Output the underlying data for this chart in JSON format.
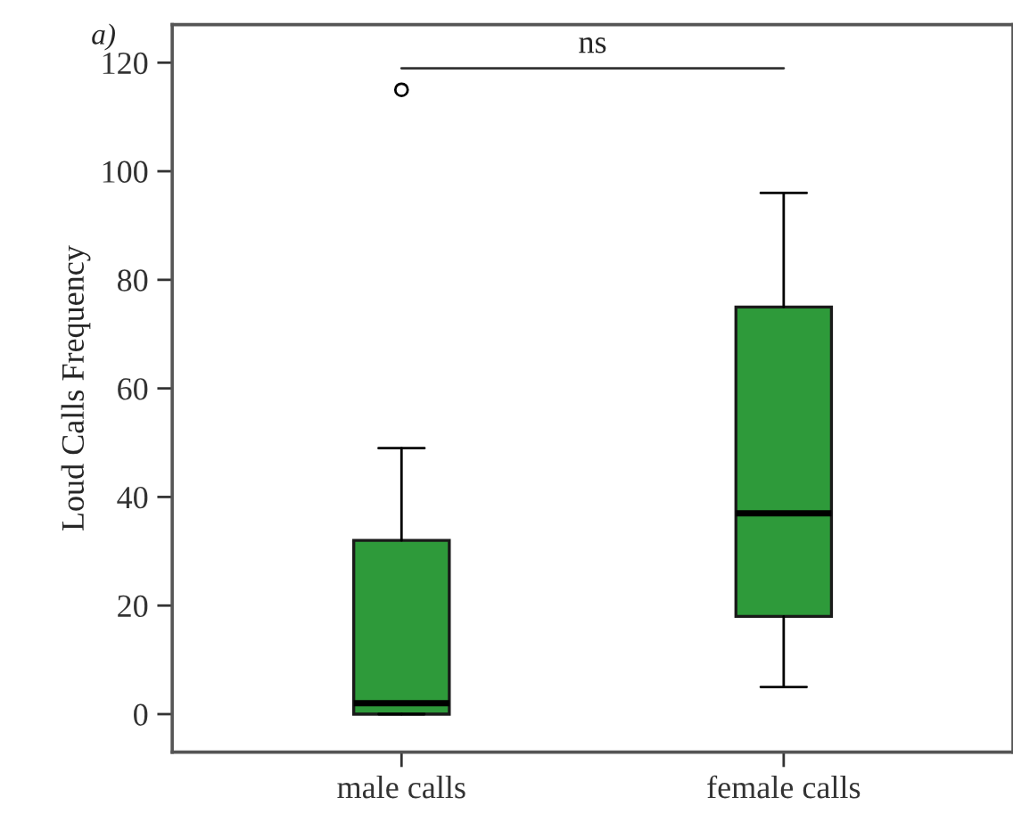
{
  "chart_data": {
    "type": "box",
    "ylabel": "Loud Calls Frequency",
    "categories": [
      "male calls",
      "female calls"
    ],
    "boxes": [
      {
        "low": 0,
        "q1": 0,
        "median": 2,
        "q3": 32,
        "high": 49,
        "outliers": [
          115
        ]
      },
      {
        "low": 5,
        "q1": 18,
        "median": 37,
        "q3": 75,
        "high": 96
      }
    ],
    "color": "#2e9a3a",
    "ylim": [
      -7,
      127
    ],
    "yticks": [
      0,
      20,
      40,
      60,
      80,
      100,
      120
    ],
    "grid": false,
    "annotations": [
      "a)",
      "ns"
    ]
  }
}
